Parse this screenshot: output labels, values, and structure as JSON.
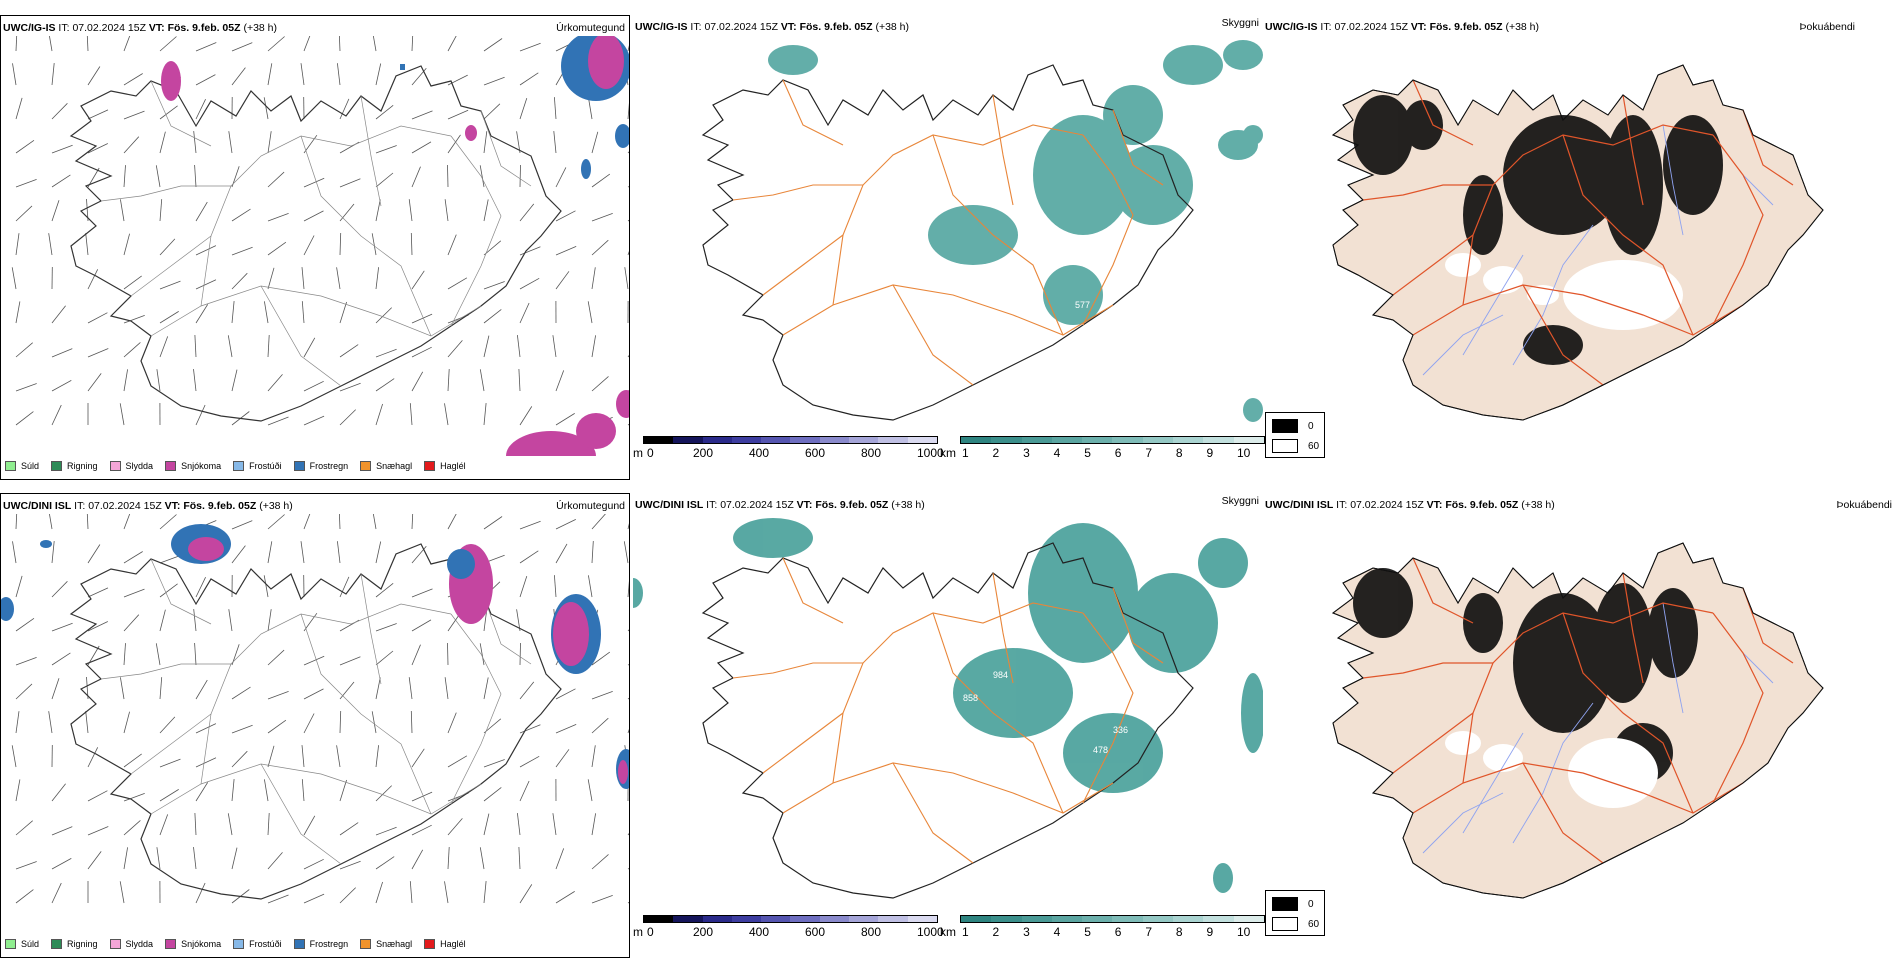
{
  "rows": [
    {
      "model": "UWC/IG-IS",
      "it_label": "IT:",
      "it_value": "07.02.2024 15Z",
      "vt_label": "VT:",
      "vt_value": "Fös. 9.feb. 05Z",
      "lead": "(+38 h)",
      "panels": {
        "precip_type": "Úrkomutegund",
        "visibility": "Skyggni",
        "dewpoint": "Þokuábendi"
      }
    },
    {
      "model": "UWC/DINI ISL",
      "it_label": "IT:",
      "it_value": "07.02.2024 15Z",
      "vt_label": "VT:",
      "vt_value": "Fös. 9.feb. 05Z",
      "lead": "(+38 h)",
      "panels": {
        "precip_type": "Úrkomutegund",
        "visibility": "Skyggni",
        "dewpoint": "Þokuábendi"
      }
    }
  ],
  "precip_legend": [
    {
      "label": "Súld",
      "color": "#90ee90"
    },
    {
      "label": "Rigning",
      "color": "#2e8b57"
    },
    {
      "label": "Slydda",
      "color": "#f4a6d7"
    },
    {
      "label": "Snjókoma",
      "color": "#c445a0"
    },
    {
      "label": "Frostúði",
      "color": "#87b9e8"
    },
    {
      "label": "Frostregn",
      "color": "#3173b5"
    },
    {
      "label": "Snæhagl",
      "color": "#f0932b"
    },
    {
      "label": "Haglél",
      "color": "#e31a1c"
    }
  ],
  "elev_scale": {
    "unit": "m",
    "ticks": [
      "0",
      "200",
      "400",
      "600",
      "800",
      "1000"
    ],
    "colors": [
      "#000000",
      "#14145a",
      "#2a2a8a",
      "#3d3da0",
      "#5555b0",
      "#6e6ec0",
      "#8a8acc",
      "#a5a5d8",
      "#c0c0e4",
      "#dadaf0"
    ]
  },
  "vis_scale": {
    "unit": "km",
    "ticks": [
      "1",
      "2",
      "3",
      "4",
      "5",
      "6",
      "7",
      "8",
      "9",
      "10"
    ],
    "colors": [
      "#2e8480",
      "#3b8f8b",
      "#4a9a96",
      "#5ba5a1",
      "#6cb0ac",
      "#7fbcb8",
      "#94c8c4",
      "#aad4d1",
      "#c2e0de",
      "#dcecea"
    ]
  },
  "dew_legend": {
    "items": [
      {
        "label": "0",
        "color": "#000000"
      },
      {
        "label": "60",
        "color": "#ffffff"
      }
    ]
  },
  "vis_labels_top": [
    "577"
  ],
  "vis_labels_bottom": [
    "336",
    "478",
    "984",
    "858"
  ],
  "colors": {
    "land": "#f2e1d3",
    "roads": "#e0652e",
    "roads_vis": "#ea8a3a",
    "rivers": "#8fa3f0",
    "coast": "#222222",
    "vis_fill": "#3c9a93",
    "snow": "#c445a0",
    "freezing_rain": "#3173b5"
  }
}
